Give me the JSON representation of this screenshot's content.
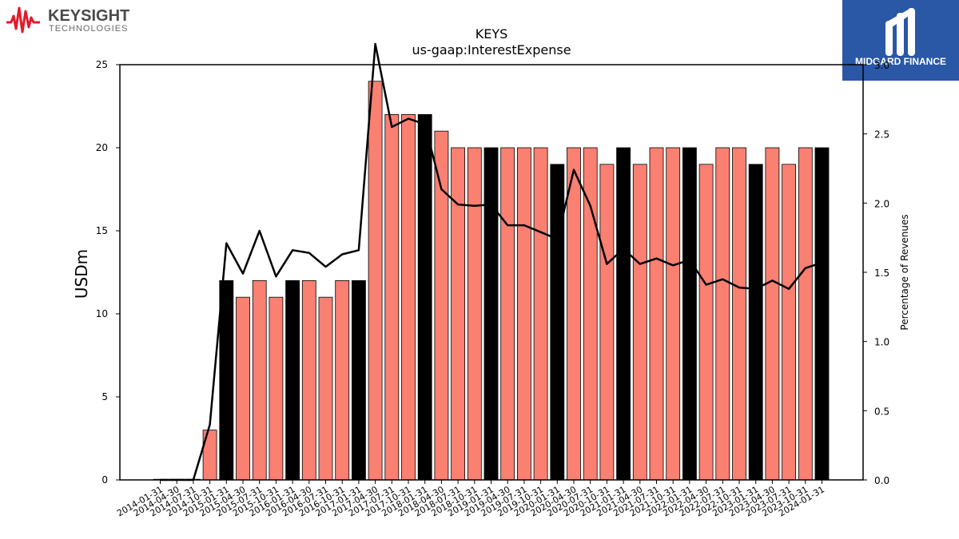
{
  "brand": {
    "left_name": "KEYSIGHT",
    "left_sub": "TECHNOLOGIES",
    "left_color": "#e11b2b",
    "right_name": "MIDGARD FINANCE",
    "right_bg": "#2a57a6"
  },
  "chart_data": {
    "type": "bar",
    "title": "KEYS",
    "subtitle": "us-gaap:InterestExpense",
    "ylabel": "USDm",
    "y2label": "Percentage of Revenues",
    "ylim": [
      0,
      25
    ],
    "y2lim": [
      0,
      3.0
    ],
    "yticks": [
      0,
      5,
      10,
      15,
      20,
      25
    ],
    "y2ticks": [
      "0.0",
      "0.5",
      "1.0",
      "1.5",
      "2.0",
      "2.5",
      "3.0"
    ],
    "categories": [
      "2014-01-31",
      "2014-04-30",
      "2014-07-31",
      "2014-10-31",
      "2015-01-31",
      "2015-04-30",
      "2015-07-31",
      "2015-10-31",
      "2016-01-31",
      "2016-04-30",
      "2016-07-31",
      "2016-10-31",
      "2017-01-31",
      "2017-04-30",
      "2017-07-31",
      "2017-10-31",
      "2018-01-31",
      "2018-04-30",
      "2018-07-31",
      "2018-10-31",
      "2019-01-31",
      "2019-04-30",
      "2019-07-31",
      "2019-10-31",
      "2020-01-31",
      "2020-04-30",
      "2020-07-31",
      "2020-10-31",
      "2021-01-31",
      "2021-04-30",
      "2021-07-31",
      "2021-10-31",
      "2022-01-31",
      "2022-04-30",
      "2022-07-31",
      "2022-10-31",
      "2023-01-31",
      "2023-04-30",
      "2023-07-31",
      "2023-10-31",
      "2024-01-31"
    ],
    "series": [
      {
        "values": [
          0,
          0,
          0,
          3,
          12,
          11,
          12,
          11,
          12,
          12,
          11,
          12,
          12,
          24,
          22,
          22,
          22,
          21,
          20,
          20,
          20,
          20,
          20,
          20,
          19,
          20,
          20,
          19,
          20,
          19,
          20,
          20,
          20,
          19,
          20,
          20,
          19,
          20,
          19,
          20,
          20
        ],
        "highlight": [
          false,
          false,
          false,
          false,
          true,
          false,
          false,
          false,
          true,
          false,
          false,
          false,
          true,
          false,
          false,
          false,
          true,
          false,
          false,
          false,
          true,
          false,
          false,
          false,
          true,
          false,
          false,
          false,
          true,
          false,
          false,
          false,
          true,
          false,
          false,
          false,
          true,
          false,
          false,
          false,
          true
        ],
        "color": "#fa8072",
        "highlight_color": "#000000"
      },
      {
        "axis": "right",
        "type": "line",
        "values": [
          0,
          0,
          0,
          0.4,
          1.71,
          1.49,
          1.8,
          1.47,
          1.66,
          1.64,
          1.54,
          1.63,
          1.66,
          3.15,
          2.55,
          2.61,
          2.57,
          2.1,
          1.99,
          1.98,
          1.99,
          1.84,
          1.84,
          1.79,
          1.74,
          2.24,
          1.98,
          1.56,
          1.67,
          1.56,
          1.6,
          1.55,
          1.59,
          1.41,
          1.45,
          1.39,
          1.38,
          1.44,
          1.38,
          1.53,
          1.57
        ],
        "color": "#000000"
      }
    ]
  }
}
